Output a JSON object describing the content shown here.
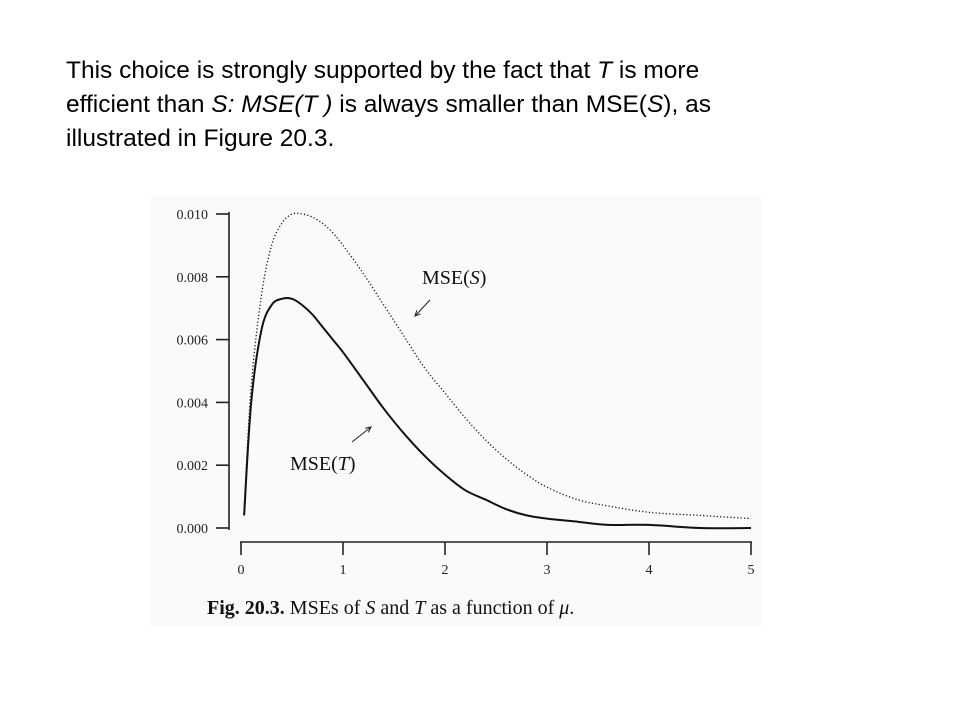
{
  "slide": {
    "para_lines": [
      [
        {
          "t": "This choice is strongly supported by the fact that ",
          "i": false
        },
        {
          "t": "T",
          "i": true
        },
        {
          "t": " is more",
          "i": false
        }
      ],
      [
        {
          "t": "efficient than ",
          "i": false
        },
        {
          "t": "S: MSE(T )",
          "i": true
        },
        {
          "t": " is always smaller than MSE(",
          "i": false
        },
        {
          "t": "S",
          "i": true
        },
        {
          "t": "), as",
          "i": false
        }
      ],
      [
        {
          "t": "illustrated in Figure 20.3.",
          "i": false
        }
      ]
    ]
  },
  "figure": {
    "caption_bold": "Fig. 20.3.",
    "caption_rest": [
      {
        "t": " MSEs of ",
        "i": false
      },
      {
        "t": "S",
        "i": true
      },
      {
        "t": " and ",
        "i": false
      },
      {
        "t": "T",
        "i": true
      },
      {
        "t": " as a function of ",
        "i": false
      },
      {
        "t": "μ",
        "i": true
      },
      {
        "t": ".",
        "i": false
      }
    ]
  },
  "chart_data": {
    "type": "line",
    "title": "",
    "xlabel": "",
    "ylabel": "",
    "xlim": [
      0,
      5
    ],
    "ylim": [
      0,
      0.01
    ],
    "x_ticks": [
      "0",
      "1",
      "2",
      "3",
      "4",
      "5"
    ],
    "y_ticks": [
      "0.000",
      "0.002",
      "0.004",
      "0.006",
      "0.008",
      "0.010"
    ],
    "grid": false,
    "legend": "none",
    "series": [
      {
        "name": "MSE(S)",
        "style": "dotted",
        "x": [
          0.03,
          0.1,
          0.2,
          0.3,
          0.4,
          0.5,
          0.6,
          0.7,
          0.8,
          0.9,
          1.0,
          1.2,
          1.4,
          1.6,
          1.8,
          2.0,
          2.2,
          2.4,
          2.6,
          2.8,
          3.0,
          3.3,
          3.6,
          4.0,
          4.5,
          5.0
        ],
        "y": [
          0.0006,
          0.0045,
          0.0074,
          0.009,
          0.0097,
          0.01,
          0.01,
          0.0099,
          0.0097,
          0.0094,
          0.009,
          0.0081,
          0.0071,
          0.0061,
          0.0051,
          0.0043,
          0.0035,
          0.0028,
          0.0022,
          0.0017,
          0.0013,
          0.0009,
          0.0007,
          0.0005,
          0.0004,
          0.0003
        ]
      },
      {
        "name": "MSE(T)",
        "style": "solid",
        "x": [
          0.03,
          0.1,
          0.2,
          0.3,
          0.4,
          0.5,
          0.6,
          0.7,
          0.8,
          0.9,
          1.0,
          1.2,
          1.4,
          1.6,
          1.8,
          2.0,
          2.2,
          2.4,
          2.6,
          2.8,
          3.0,
          3.3,
          3.6,
          4.0,
          4.5,
          5.0
        ],
        "y": [
          0.0004,
          0.004,
          0.0063,
          0.0071,
          0.0073,
          0.0073,
          0.0071,
          0.0068,
          0.0064,
          0.006,
          0.0056,
          0.0047,
          0.0038,
          0.003,
          0.0023,
          0.0017,
          0.0012,
          0.0009,
          0.0006,
          0.0004,
          0.0003,
          0.0002,
          0.0001,
          0.0001,
          0.0,
          0.0
        ]
      }
    ],
    "annotations": [
      {
        "text_pre": "MSE(",
        "text_var": "S",
        "text_post": ")",
        "series": "MSE(S)",
        "arrow": "↙"
      },
      {
        "text_pre": "MSE(",
        "text_var": "T",
        "text_post": ")",
        "series": "MSE(T)",
        "arrow": "↗"
      }
    ]
  }
}
